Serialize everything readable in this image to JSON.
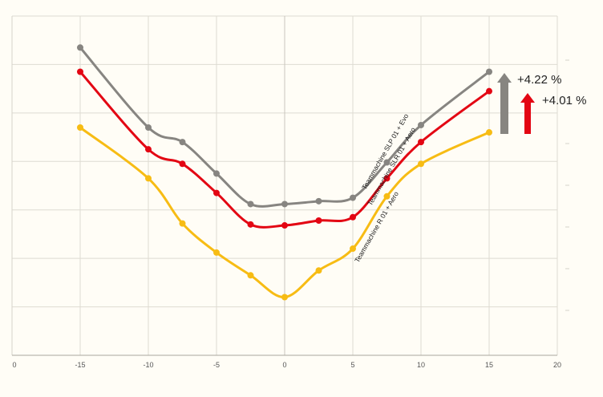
{
  "chart_data": {
    "type": "line",
    "title": "",
    "xlabel": "",
    "ylabel": "",
    "xlim": [
      -20,
      20
    ],
    "ylim": [
      0,
      7
    ],
    "x_ticks": [
      "-15",
      "-10",
      "-5",
      "0",
      "5",
      "10",
      "15",
      "20"
    ],
    "x_ticks_bottom_left": "0",
    "grid": true,
    "series": [
      {
        "name": "Teammachine SLP 01 + Evo",
        "color": "#878581",
        "points": [
          [
            -15,
            6.35
          ],
          [
            -10,
            4.7
          ],
          [
            -7.5,
            4.4
          ],
          [
            -5,
            3.75
          ],
          [
            -2.5,
            3.12
          ],
          [
            0,
            3.12
          ],
          [
            2.5,
            3.18
          ],
          [
            5,
            3.25
          ],
          [
            7.5,
            3.98
          ],
          [
            10,
            4.75
          ],
          [
            15,
            5.85
          ]
        ]
      },
      {
        "name": "Teammachine SLR 01 + Aero",
        "color": "#e30613",
        "points": [
          [
            -15,
            5.85
          ],
          [
            -10,
            4.25
          ],
          [
            -7.5,
            3.95
          ],
          [
            -5,
            3.35
          ],
          [
            -2.5,
            2.7
          ],
          [
            0,
            2.68
          ],
          [
            2.5,
            2.78
          ],
          [
            5,
            2.85
          ],
          [
            7.5,
            3.65
          ],
          [
            10,
            4.4
          ],
          [
            15,
            5.45
          ]
        ]
      },
      {
        "name": "Teammachine R 01 + Aero",
        "color": "#f7bc14",
        "points": [
          [
            -15,
            4.7
          ],
          [
            -10,
            3.65
          ],
          [
            -7.5,
            2.72
          ],
          [
            -5,
            2.12
          ],
          [
            -2.5,
            1.65
          ],
          [
            0,
            1.2
          ],
          [
            2.5,
            1.75
          ],
          [
            5,
            2.2
          ],
          [
            7.5,
            3.28
          ],
          [
            10,
            3.95
          ],
          [
            15,
            4.6
          ]
        ]
      }
    ],
    "annotations": [
      {
        "text": "+4.22 %",
        "color": "#878581",
        "direction": "up"
      },
      {
        "text": "+4.01 %",
        "color": "#e30613",
        "direction": "up"
      }
    ]
  }
}
